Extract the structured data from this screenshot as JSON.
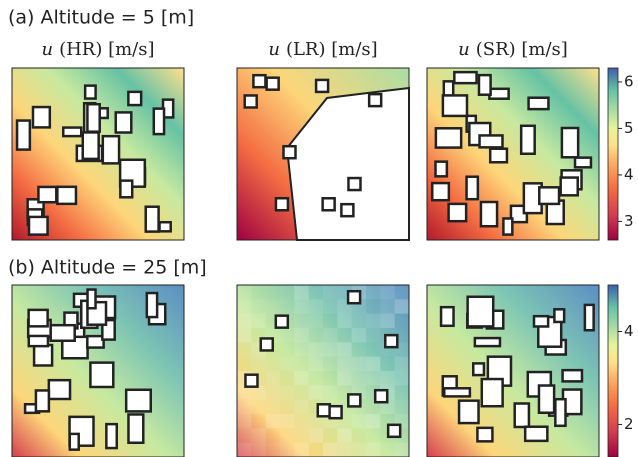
{
  "chart_data": [
    {
      "type": "heatmap",
      "title": "(a) Altitude = 5 [m]",
      "variable": "u",
      "panels": [
        "(HR) [m/s]",
        "(LR) [m/s]",
        "(SR) [m/s]"
      ],
      "clim": [
        2.6,
        6.3
      ],
      "cticks": [
        3,
        4,
        5,
        6
      ]
    },
    {
      "type": "heatmap",
      "title": "(b) Altitude = 25 [m]",
      "clim": [
        1.3,
        5.0
      ],
      "cticks": [
        2,
        4
      ]
    }
  ]
}
